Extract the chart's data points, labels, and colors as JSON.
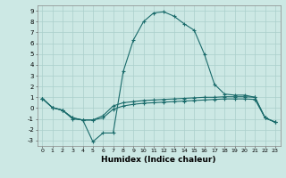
{
  "title": "",
  "xlabel": "Humidex (Indice chaleur)",
  "background_color": "#cce8e4",
  "line_color": "#1a6b6b",
  "grid_color": "#aacfcb",
  "xlim": [
    -0.5,
    23.5
  ],
  "ylim": [
    -3.5,
    9.5
  ],
  "xticks": [
    0,
    1,
    2,
    3,
    4,
    5,
    6,
    7,
    8,
    9,
    10,
    11,
    12,
    13,
    14,
    15,
    16,
    17,
    18,
    19,
    20,
    21,
    22,
    23
  ],
  "yticks": [
    -3,
    -2,
    -1,
    0,
    1,
    2,
    3,
    4,
    5,
    6,
    7,
    8,
    9
  ],
  "line1_x": [
    0,
    1,
    2,
    3,
    4,
    5,
    6,
    7,
    8,
    9,
    10,
    11,
    12,
    13,
    14,
    15,
    16,
    17,
    18,
    19,
    20,
    21,
    22,
    23
  ],
  "line1_y": [
    0.9,
    0.05,
    -0.2,
    -1.0,
    -1.1,
    -3.1,
    -2.3,
    -2.3,
    3.4,
    6.3,
    8.0,
    8.8,
    8.9,
    8.5,
    7.8,
    7.2,
    5.0,
    2.2,
    1.3,
    1.2,
    1.2,
    1.0,
    -0.9,
    -1.3
  ],
  "line2_x": [
    0,
    1,
    2,
    3,
    4,
    5,
    6,
    7,
    8,
    9,
    10,
    11,
    12,
    13,
    14,
    15,
    16,
    17,
    18,
    19,
    20,
    21,
    22,
    23
  ],
  "line2_y": [
    0.9,
    0.05,
    -0.2,
    -0.9,
    -1.1,
    -1.1,
    -0.7,
    0.2,
    0.5,
    0.6,
    0.7,
    0.75,
    0.8,
    0.85,
    0.9,
    0.95,
    1.0,
    1.0,
    1.05,
    1.05,
    1.05,
    1.0,
    -0.9,
    -1.3
  ],
  "line3_x": [
    0,
    1,
    2,
    3,
    4,
    5,
    6,
    7,
    8,
    9,
    10,
    11,
    12,
    13,
    14,
    15,
    16,
    17,
    18,
    19,
    20,
    21,
    22,
    23
  ],
  "line3_y": [
    0.9,
    0.05,
    -0.2,
    -0.9,
    -1.1,
    -1.1,
    -0.9,
    -0.1,
    0.2,
    0.35,
    0.45,
    0.5,
    0.55,
    0.6,
    0.65,
    0.7,
    0.75,
    0.8,
    0.85,
    0.85,
    0.85,
    0.8,
    -0.9,
    -1.3
  ]
}
